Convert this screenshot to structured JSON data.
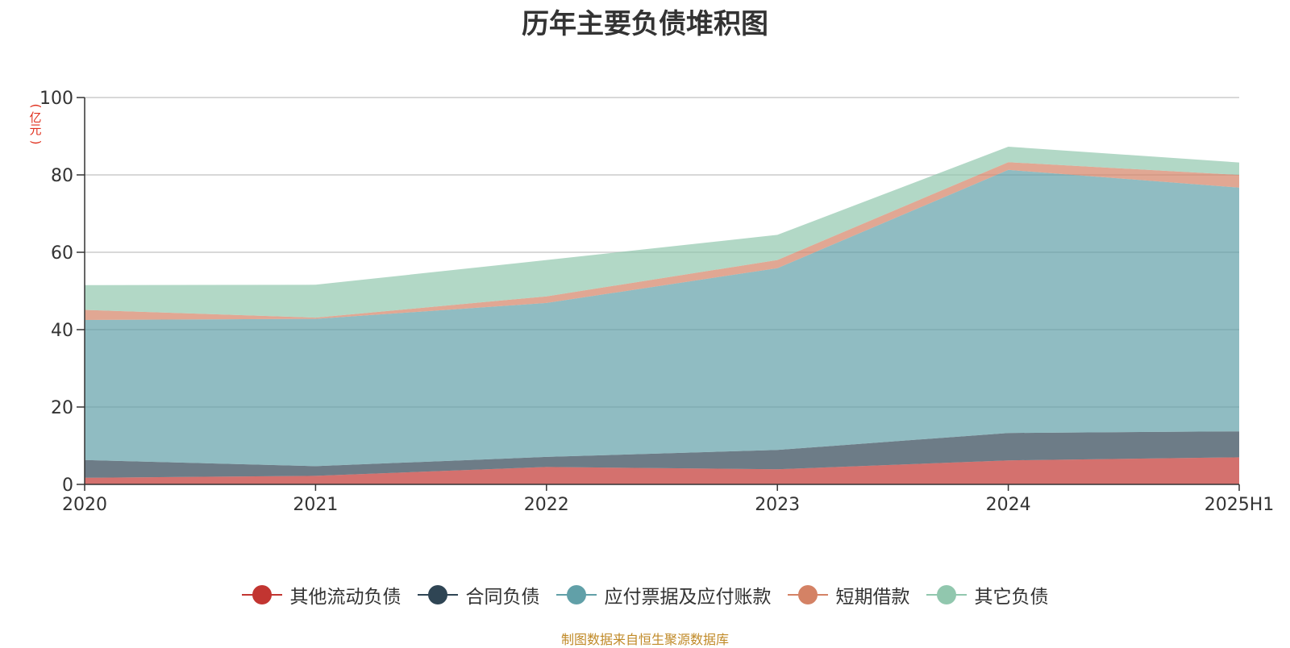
{
  "title": "历年主要负债堆积图",
  "unit_label": "(亿元)",
  "source_note": "制图数据来自恒生聚源数据库",
  "colors": {
    "other_current": "#c23531",
    "contract": "#2f4554",
    "payables": "#61a0a8",
    "short_loans": "#d48265",
    "other": "#91c7ae",
    "axis": "#333333",
    "grid": "#cccccc",
    "unit": "#e0301e"
  },
  "chart_data": {
    "type": "area",
    "stacked": true,
    "x": [
      "2020",
      "2021",
      "2022",
      "2023",
      "2024",
      "2025H1"
    ],
    "ylim": [
      0,
      100
    ],
    "yticks": [
      0,
      20,
      40,
      60,
      80,
      100
    ],
    "ylabel": "(亿元)",
    "grid": true,
    "legend_position": "bottom",
    "series": [
      {
        "name": "其他流动负债",
        "key": "other_current",
        "values": [
          1.7,
          2.2,
          4.5,
          3.9,
          6.2,
          7.0
        ]
      },
      {
        "name": "合同负债",
        "key": "contract",
        "values": [
          4.6,
          2.5,
          2.6,
          5.0,
          7.1,
          6.7
        ]
      },
      {
        "name": "应付票据及应付账款",
        "key": "payables",
        "values": [
          36.2,
          38.1,
          39.8,
          47.0,
          68.0,
          63.0
        ]
      },
      {
        "name": "短期借款",
        "key": "short_loans",
        "values": [
          2.6,
          0.3,
          1.7,
          2.1,
          2.0,
          3.3
        ]
      },
      {
        "name": "其它负债",
        "key": "other",
        "values": [
          6.4,
          8.5,
          9.4,
          6.5,
          4.0,
          3.2
        ]
      }
    ]
  }
}
